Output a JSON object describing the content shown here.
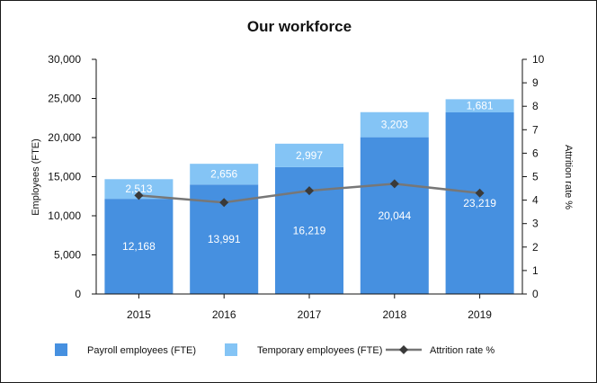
{
  "chart_data": {
    "type": "bar",
    "title": "Our workforce",
    "categories": [
      "2015",
      "2016",
      "2017",
      "2018",
      "2019"
    ],
    "series": [
      {
        "name": "Payroll employees (FTE)",
        "kind": "bar",
        "stack": "primary",
        "color": "#4690e0",
        "values": [
          12168,
          13991,
          16219,
          20044,
          23219
        ]
      },
      {
        "name": "Temporary employees (FTE)",
        "kind": "bar",
        "stack": "primary",
        "color": "#84c4f5",
        "values": [
          2513,
          2656,
          2997,
          3203,
          1681
        ]
      },
      {
        "name": "Attrition rate %",
        "kind": "line",
        "axis": "right",
        "color": "#777777",
        "marker_color": "#3a3a3a",
        "values": [
          4.2,
          3.9,
          4.4,
          4.7,
          4.3
        ]
      }
    ],
    "bar_labels": {
      "payroll": [
        "12,168",
        "13,991",
        "16,219",
        "20,044",
        "23,219"
      ],
      "temporary": [
        "2,513",
        "2,656",
        "2,997",
        "3,203",
        "1,681"
      ]
    },
    "ylabel": "Employees (FTE)",
    "ylim": [
      0,
      30000
    ],
    "yticks": [
      "0",
      "5,000",
      "10,000",
      "15,000",
      "20,000",
      "25,000",
      "30,000"
    ],
    "y2label": "Attrition rate %",
    "y2lim": [
      0,
      10
    ],
    "y2ticks": [
      "0",
      "1",
      "2",
      "3",
      "4",
      "5",
      "6",
      "7",
      "8",
      "9",
      "10"
    ],
    "grid": false,
    "legend_position": "bottom"
  }
}
